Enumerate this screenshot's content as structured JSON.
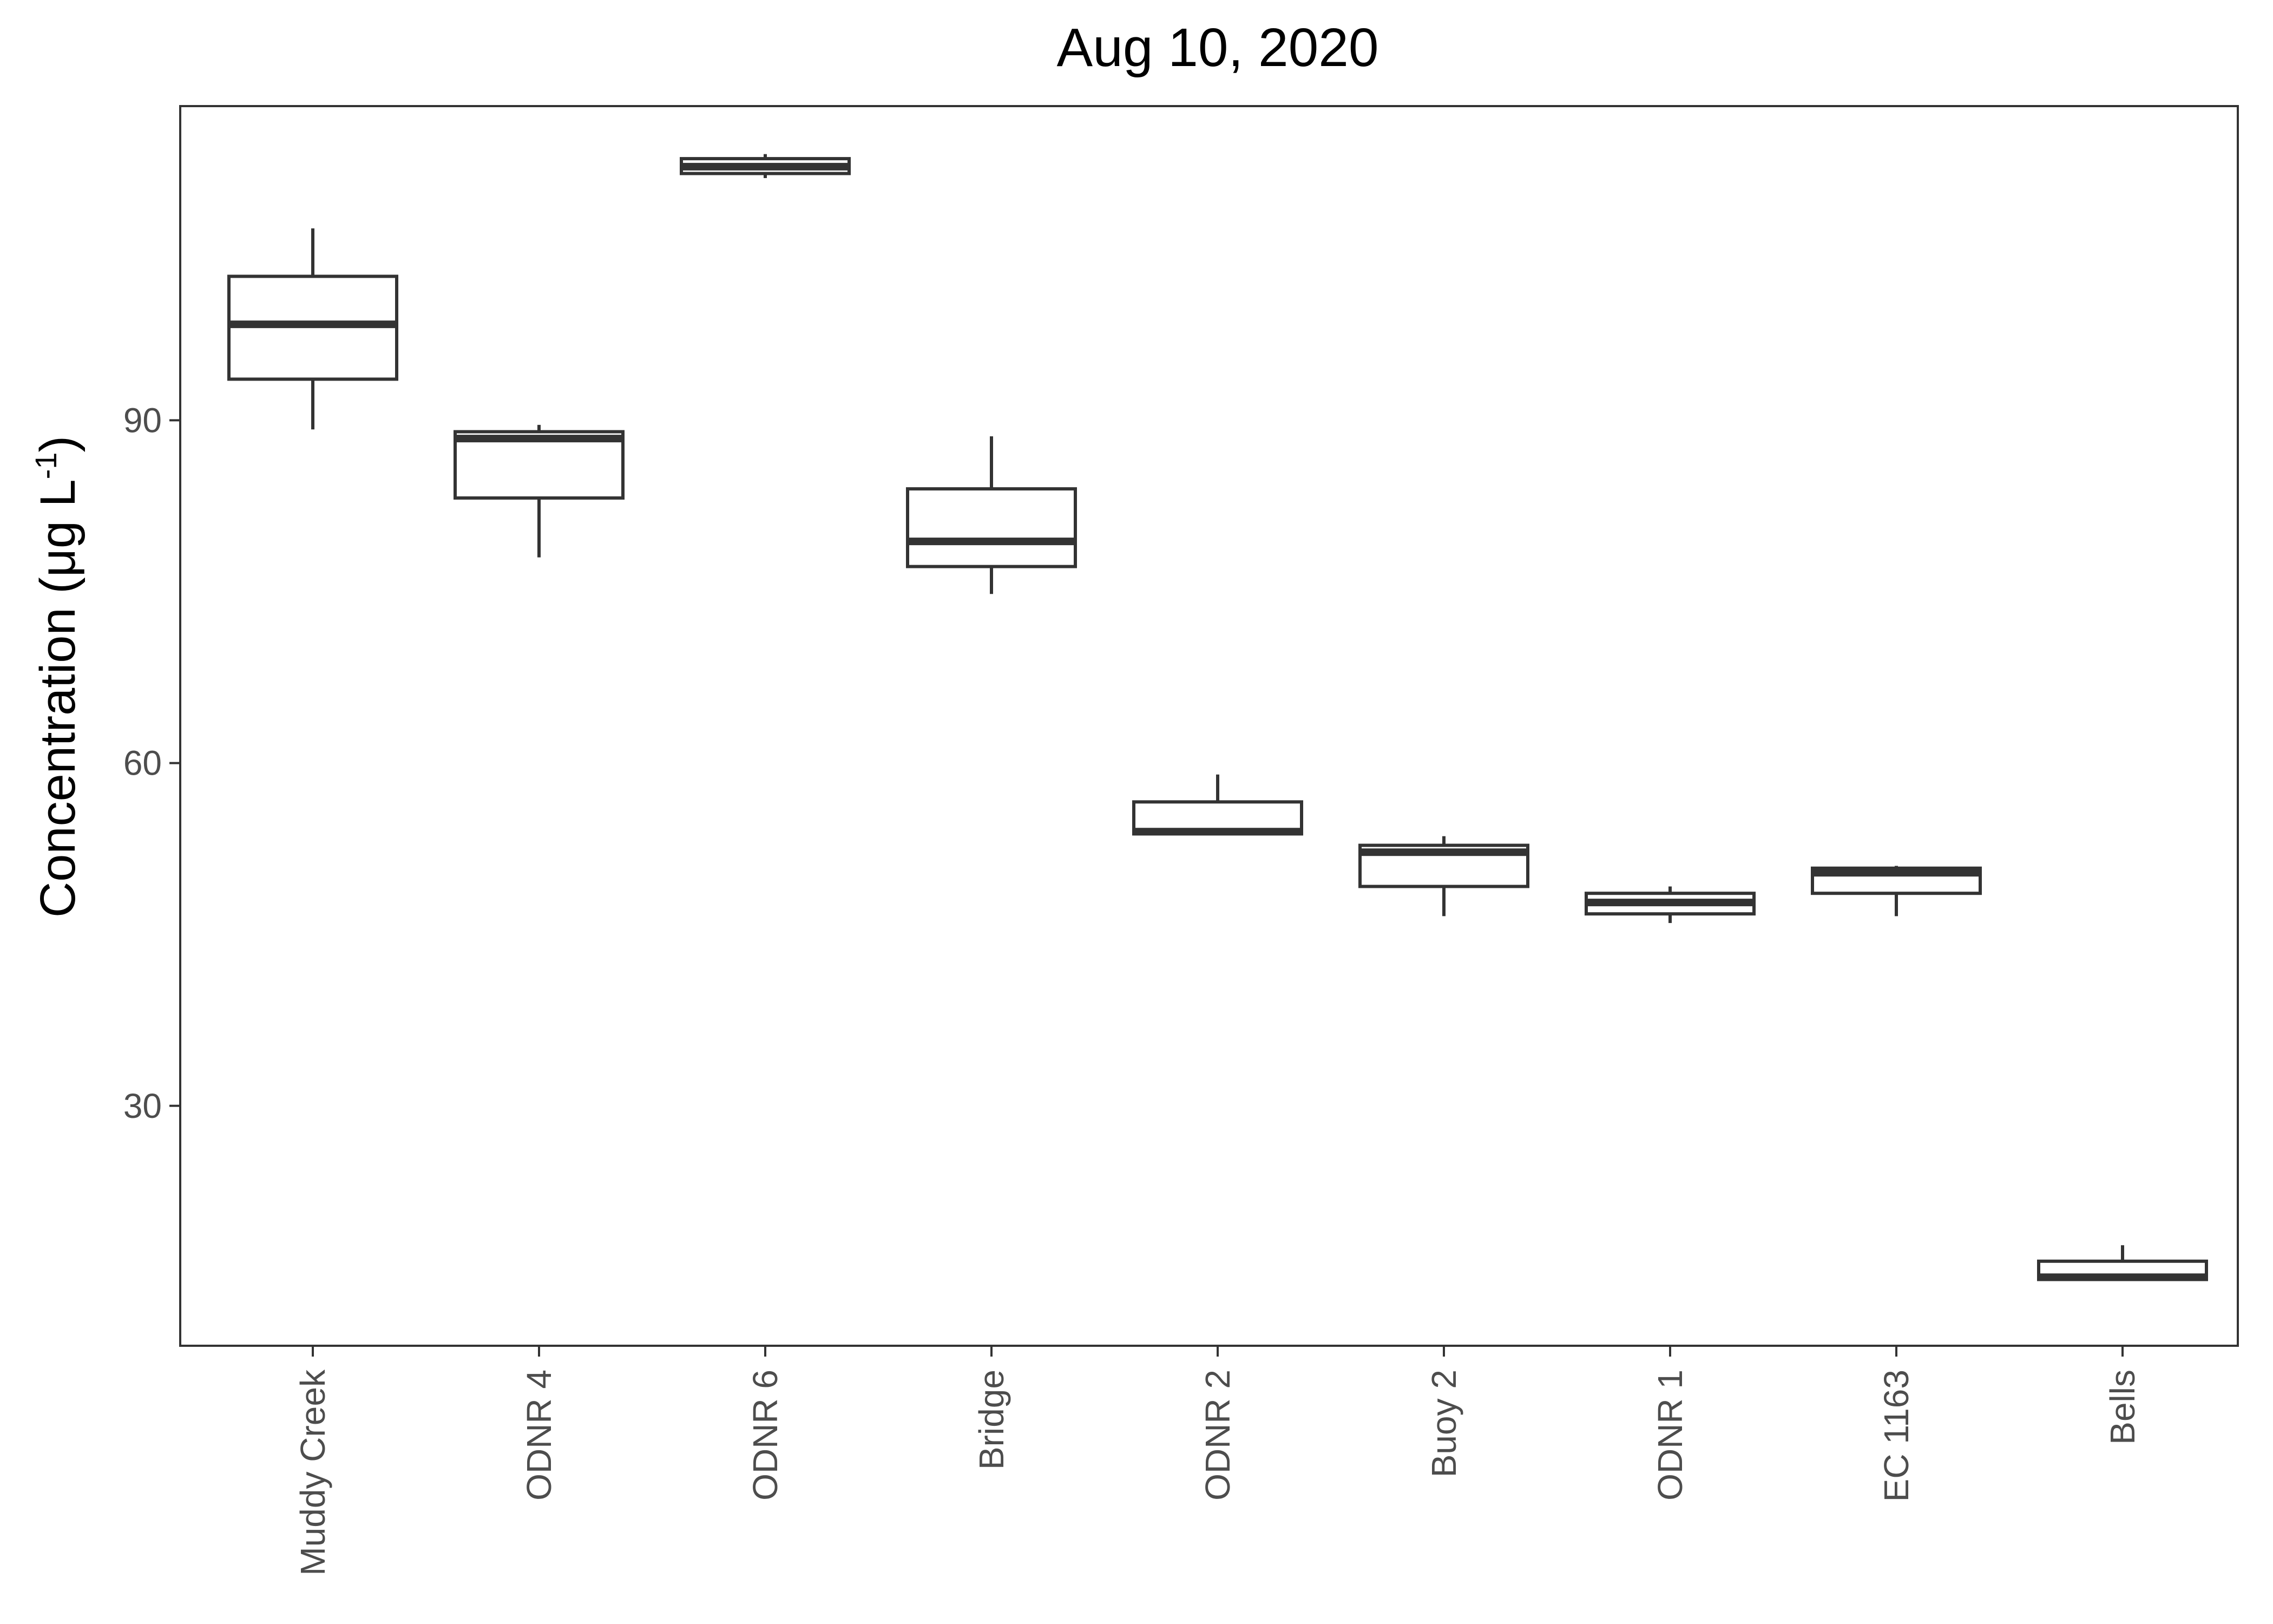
{
  "chart_data": {
    "type": "box",
    "title": "Aug 10, 2020",
    "xlabel": "",
    "ylabel": {
      "main": "Concentration (μg L",
      "sup": "-1",
      "close": ")"
    },
    "y_ticks": [
      30,
      60,
      90
    ],
    "ylim": [
      9,
      117.5
    ],
    "grid": false,
    "legend": "none",
    "colors": {
      "box": "#333333",
      "axis": "#333333",
      "tick_text": "#4d4d4d",
      "title": "#000000"
    },
    "categories": [
      "Muddy Creek",
      "ODNR 4",
      "ODNR 6",
      "Bridge",
      "ODNR 2",
      "Buoy 2",
      "ODNR 1",
      "EC 1163",
      "Bells"
    ],
    "boxes": [
      {
        "category": "Muddy Creek",
        "lower_whisker": 89.2,
        "q1": 93.6,
        "median": 98.4,
        "q3": 102.6,
        "upper_whisker": 106.8
      },
      {
        "category": "ODNR 4",
        "lower_whisker": 78.0,
        "q1": 83.2,
        "median": 88.4,
        "q3": 89.0,
        "upper_whisker": 89.6
      },
      {
        "category": "ODNR 6",
        "lower_whisker": 111.2,
        "q1": 111.6,
        "median": 112.2,
        "q3": 112.9,
        "upper_whisker": 113.3
      },
      {
        "category": "Bridge",
        "lower_whisker": 74.8,
        "q1": 77.2,
        "median": 79.4,
        "q3": 84.0,
        "upper_whisker": 88.6
      },
      {
        "category": "ODNR 2",
        "lower_whisker": 53.8,
        "q1": 53.8,
        "median": 54.0,
        "q3": 56.6,
        "upper_whisker": 59.0
      },
      {
        "category": "Buoy 2",
        "lower_whisker": 46.6,
        "q1": 49.2,
        "median": 52.2,
        "q3": 52.8,
        "upper_whisker": 53.6
      },
      {
        "category": "ODNR 1",
        "lower_whisker": 46.0,
        "q1": 46.8,
        "median": 47.8,
        "q3": 48.6,
        "upper_whisker": 49.2
      },
      {
        "category": "EC 1163",
        "lower_whisker": 46.6,
        "q1": 48.6,
        "median": 50.4,
        "q3": 50.8,
        "upper_whisker": 51.0
      },
      {
        "category": "Bells",
        "lower_whisker": 14.8,
        "q1": 14.8,
        "median": 15.0,
        "q3": 16.4,
        "upper_whisker": 17.8
      }
    ]
  }
}
